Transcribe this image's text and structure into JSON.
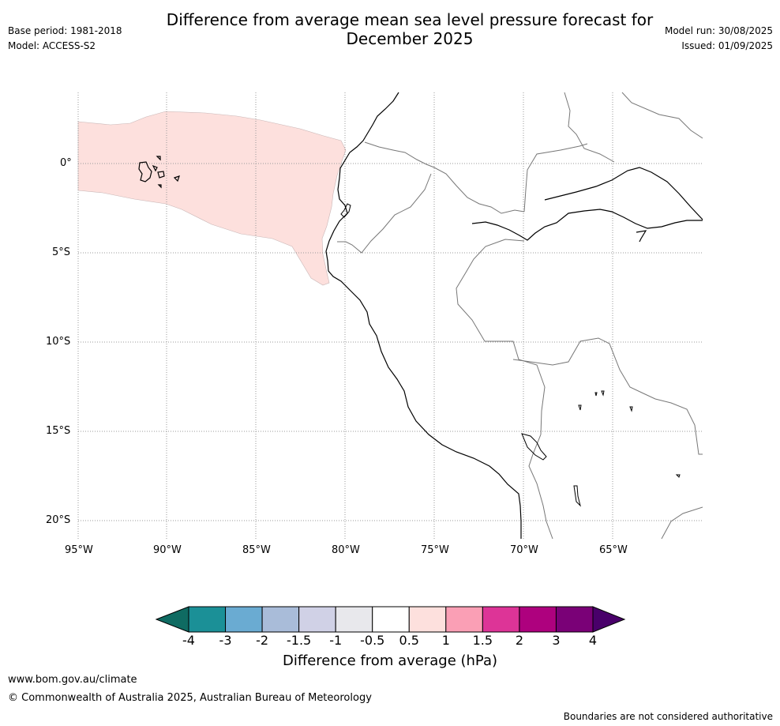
{
  "header": {
    "title_line1": "Difference from average mean sea level pressure forecast for",
    "title_line2": "December 2025",
    "base_period": "Base period: 1981-2018",
    "model": "Model: ACCESS-S2",
    "model_run": "Model run: 30/08/2025",
    "issued": "Issued: 01/09/2025"
  },
  "map": {
    "lat_labels": [
      "0°",
      "5°S",
      "10°S",
      "15°S",
      "20°S"
    ],
    "lon_labels": [
      "95°W",
      "90°W",
      "85°W",
      "80°W",
      "75°W",
      "70°W",
      "65°W"
    ],
    "anomaly_region_color": "#fde0dd",
    "coastline_color": "#000000",
    "border_color": "#777777",
    "gridline_style": "dotted"
  },
  "colorbar": {
    "colors": [
      "#0f6b62",
      "#1b9097",
      "#6aabd2",
      "#a9bcd9",
      "#d0d1e6",
      "#e8e8ec",
      "#ffffff",
      "#fde0dd",
      "#fa9fb5",
      "#dd3497",
      "#ae017e",
      "#7a0177",
      "#49006a"
    ],
    "ticks": [
      "-4",
      "-3",
      "-2",
      "-1.5",
      "-1",
      "-0.5",
      "0.5",
      "1",
      "1.5",
      "2",
      "3",
      "4"
    ],
    "label": "Difference from average (hPa)"
  },
  "footer": {
    "website": "www.bom.gov.au/climate",
    "copyright": "© Commonwealth of Australia 2025, Australian Bureau of Meteorology",
    "disclaimer": "Boundaries are not considered authoritative"
  }
}
